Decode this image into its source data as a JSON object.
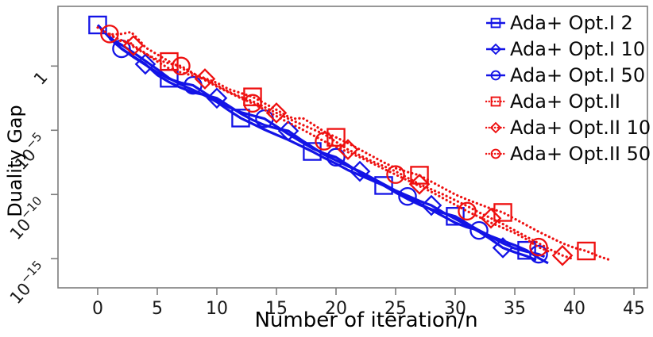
{
  "chart_data": {
    "type": "line",
    "title": "",
    "xlabel": "Number of iteration/n",
    "ylabel": "Duality Gap",
    "yscale": "log",
    "grid": false,
    "legend_position": "upper right",
    "xlim": [
      -3.33,
      46.13
    ],
    "ylog_lim": [
      -17.27,
      4.65
    ],
    "xticks": [
      0,
      5,
      10,
      15,
      20,
      25,
      30,
      35,
      40,
      45
    ],
    "yticks": [
      {
        "base": "1",
        "exp": "",
        "log": 0
      },
      {
        "base": "10",
        "exp": "−5",
        "log": -5
      },
      {
        "base": "10",
        "exp": "−10",
        "log": -10
      },
      {
        "base": "10",
        "exp": "−15",
        "log": -15
      }
    ],
    "colors": {
      "opt1_blue": "#1313e6",
      "opt2_red": "#ee1010",
      "axis": "#7d7d7d",
      "text": "#1a1a1a"
    },
    "series": [
      {
        "name": "Ada+ Opt.I 2",
        "color": "#1313e6",
        "marker": "square",
        "linestyle": "solid",
        "points": [
          [
            0,
            3.2
          ],
          [
            1,
            2.2
          ],
          [
            2,
            1.65
          ],
          [
            3,
            1.05
          ],
          [
            4,
            0.4
          ],
          [
            5,
            -0.25
          ],
          [
            6,
            -0.95
          ],
          [
            7,
            -1.45
          ],
          [
            8,
            -1.85
          ],
          [
            9,
            -2.3
          ],
          [
            10,
            -2.8
          ],
          [
            11,
            -3.45
          ],
          [
            12,
            -4.05
          ],
          [
            13,
            -4.5
          ],
          [
            14,
            -4.95
          ],
          [
            15,
            -5.35
          ],
          [
            16,
            -5.75
          ],
          [
            17,
            -6.2
          ],
          [
            18,
            -6.65
          ],
          [
            19,
            -7.15
          ],
          [
            20,
            -7.6
          ],
          [
            21,
            -8.1
          ],
          [
            22,
            -8.5
          ],
          [
            23,
            -8.9
          ],
          [
            24,
            -9.3
          ],
          [
            25,
            -9.85
          ],
          [
            26,
            -10.35
          ],
          [
            27,
            -10.8
          ],
          [
            28,
            -11.15
          ],
          [
            29,
            -11.45
          ],
          [
            30,
            -11.7
          ],
          [
            31,
            -12.25
          ],
          [
            32,
            -12.8
          ],
          [
            33,
            -13.25
          ],
          [
            34,
            -13.6
          ],
          [
            35,
            -13.95
          ],
          [
            36,
            -14.35
          ],
          [
            37,
            -14.95
          ],
          [
            37.8,
            -15.35
          ]
        ],
        "marker_points": [
          [
            0,
            3.2
          ],
          [
            6,
            -0.95
          ],
          [
            12,
            -4.05
          ],
          [
            18,
            -6.65
          ],
          [
            24,
            -9.3
          ],
          [
            30,
            -11.7
          ],
          [
            36,
            -14.35
          ]
        ]
      },
      {
        "name": "Ada+ Opt.I 10",
        "color": "#1313e6",
        "marker": "diamond",
        "linestyle": "solid",
        "points": [
          [
            1,
            2.15
          ],
          [
            2,
            1.35
          ],
          [
            3,
            0.75
          ],
          [
            4,
            0.15
          ],
          [
            5,
            -0.7
          ],
          [
            6,
            -1.25
          ],
          [
            7,
            -1.7
          ],
          [
            8,
            -2.05
          ],
          [
            9,
            -2.25
          ],
          [
            10,
            -2.5
          ],
          [
            11,
            -3.1
          ],
          [
            12,
            -3.7
          ],
          [
            13,
            -4.2
          ],
          [
            14,
            -4.6
          ],
          [
            15,
            -4.85
          ],
          [
            16,
            -5.05
          ],
          [
            17,
            -5.7
          ],
          [
            18,
            -6.3
          ],
          [
            19,
            -6.9
          ],
          [
            20,
            -7.35
          ],
          [
            21,
            -7.8
          ],
          [
            22,
            -8.2
          ],
          [
            23,
            -8.7
          ],
          [
            24,
            -9.2
          ],
          [
            25,
            -9.7
          ],
          [
            26,
            -10.1
          ],
          [
            27,
            -10.5
          ],
          [
            28,
            -10.85
          ],
          [
            29,
            -11.4
          ],
          [
            30,
            -11.9
          ],
          [
            31,
            -12.4
          ],
          [
            32,
            -12.9
          ],
          [
            33,
            -13.5
          ],
          [
            34,
            -14.15
          ],
          [
            35,
            -14.5
          ],
          [
            36,
            -14.8
          ],
          [
            36.8,
            -15.1
          ]
        ],
        "marker_points": [
          [
            4,
            0.15
          ],
          [
            10,
            -2.5
          ],
          [
            16,
            -5.05
          ],
          [
            22,
            -8.2
          ],
          [
            28,
            -10.85
          ],
          [
            34,
            -14.15
          ]
        ]
      },
      {
        "name": "Ada+ Opt.I 50",
        "color": "#1313e6",
        "marker": "circle",
        "linestyle": "solid",
        "points": [
          [
            1,
            2.3
          ],
          [
            2,
            1.35
          ],
          [
            3,
            0.7
          ],
          [
            4,
            0.1
          ],
          [
            5,
            -0.5
          ],
          [
            6,
            -1.0
          ],
          [
            7,
            -1.3
          ],
          [
            8,
            -1.5
          ],
          [
            9,
            -2.1
          ],
          [
            10,
            -2.7
          ],
          [
            11,
            -3.2
          ],
          [
            12,
            -3.6
          ],
          [
            13,
            -3.85
          ],
          [
            14,
            -4.1
          ],
          [
            15,
            -4.7
          ],
          [
            16,
            -5.3
          ],
          [
            17,
            -5.85
          ],
          [
            18,
            -6.4
          ],
          [
            19,
            -6.8
          ],
          [
            20,
            -7.1
          ],
          [
            21,
            -7.7
          ],
          [
            22,
            -8.3
          ],
          [
            23,
            -8.8
          ],
          [
            24,
            -9.3
          ],
          [
            25,
            -9.75
          ],
          [
            26,
            -10.15
          ],
          [
            27,
            -10.7
          ],
          [
            28,
            -11.2
          ],
          [
            29,
            -11.7
          ],
          [
            30,
            -12.2
          ],
          [
            31,
            -12.55
          ],
          [
            32,
            -12.8
          ],
          [
            33,
            -13.3
          ],
          [
            34,
            -13.8
          ],
          [
            35,
            -14.2
          ],
          [
            36,
            -14.45
          ],
          [
            37,
            -14.65
          ],
          [
            37.5,
            -14.85
          ]
        ],
        "marker_points": [
          [
            2,
            1.35
          ],
          [
            8,
            -1.5
          ],
          [
            14,
            -4.1
          ],
          [
            20,
            -7.1
          ],
          [
            26,
            -10.15
          ],
          [
            32,
            -12.8
          ],
          [
            37,
            -14.65
          ]
        ]
      },
      {
        "name": "Ada+ Opt.II",
        "color": "#ee1010",
        "marker": "square",
        "linestyle": "dotted",
        "points": [
          [
            0,
            3.0
          ],
          [
            1,
            2.45
          ],
          [
            2,
            2.5
          ],
          [
            2.8,
            2.65
          ],
          [
            3.5,
            2.0
          ],
          [
            4,
            1.45
          ],
          [
            5,
            0.9
          ],
          [
            6,
            0.35
          ],
          [
            7,
            -0.15
          ],
          [
            8,
            -0.6
          ],
          [
            9,
            -0.95
          ],
          [
            10,
            -1.3
          ],
          [
            11,
            -1.8
          ],
          [
            12,
            -2.1
          ],
          [
            13,
            -2.4
          ],
          [
            14,
            -2.9
          ],
          [
            15,
            -3.4
          ],
          [
            16,
            -3.95
          ],
          [
            16.6,
            -4.1
          ],
          [
            17.2,
            -4.05
          ],
          [
            18,
            -4.5
          ],
          [
            19,
            -5.1
          ],
          [
            20,
            -5.55
          ],
          [
            21,
            -6.0
          ],
          [
            22,
            -6.5
          ],
          [
            23,
            -7.0
          ],
          [
            24,
            -7.5
          ],
          [
            25,
            -7.95
          ],
          [
            26,
            -8.25
          ],
          [
            27,
            -8.5
          ],
          [
            28,
            -9.0
          ],
          [
            29,
            -9.5
          ],
          [
            30,
            -10.0
          ],
          [
            31,
            -10.4
          ],
          [
            32,
            -10.75
          ],
          [
            33,
            -11.1
          ],
          [
            34,
            -11.4
          ],
          [
            35,
            -11.9
          ],
          [
            36,
            -12.4
          ],
          [
            37,
            -12.9
          ],
          [
            38,
            -13.35
          ],
          [
            39,
            -13.8
          ],
          [
            40,
            -14.15
          ],
          [
            41,
            -14.4
          ],
          [
            42,
            -14.8
          ],
          [
            43,
            -15.1
          ]
        ],
        "marker_points": [
          [
            6,
            0.35
          ],
          [
            13,
            -2.4
          ],
          [
            20,
            -5.55
          ],
          [
            27,
            -8.5
          ],
          [
            34,
            -11.4
          ],
          [
            41,
            -14.4
          ]
        ]
      },
      {
        "name": "Ada+ Opt.II 10",
        "color": "#ee1010",
        "marker": "diamond",
        "linestyle": "dotted",
        "points": [
          [
            1,
            2.4
          ],
          [
            2,
            2.0
          ],
          [
            3,
            1.6
          ],
          [
            4,
            1.0
          ],
          [
            5,
            0.35
          ],
          [
            6,
            -0.2
          ],
          [
            7,
            -0.5
          ],
          [
            8,
            -0.75
          ],
          [
            9,
            -1.0
          ],
          [
            10,
            -1.5
          ],
          [
            11,
            -2.0
          ],
          [
            12,
            -2.4
          ],
          [
            13,
            -2.75
          ],
          [
            14,
            -3.2
          ],
          [
            15,
            -3.65
          ],
          [
            16,
            -4.1
          ],
          [
            17,
            -4.5
          ],
          [
            18,
            -4.9
          ],
          [
            19,
            -5.3
          ],
          [
            20,
            -5.9
          ],
          [
            21,
            -6.5
          ],
          [
            22,
            -6.95
          ],
          [
            23,
            -7.4
          ],
          [
            24,
            -7.8
          ],
          [
            25,
            -8.2
          ],
          [
            26,
            -8.7
          ],
          [
            27,
            -9.2
          ],
          [
            28,
            -9.6
          ],
          [
            29,
            -10.0
          ],
          [
            30,
            -10.45
          ],
          [
            31,
            -10.9
          ],
          [
            32,
            -11.4
          ],
          [
            33,
            -11.85
          ],
          [
            34,
            -12.3
          ],
          [
            35,
            -12.8
          ],
          [
            36,
            -13.3
          ],
          [
            37,
            -13.8
          ],
          [
            38,
            -14.3
          ],
          [
            39,
            -14.75
          ],
          [
            39.8,
            -15.0
          ]
        ],
        "marker_points": [
          [
            3,
            1.6
          ],
          [
            9,
            -1.0
          ],
          [
            15,
            -3.65
          ],
          [
            21,
            -6.5
          ],
          [
            27,
            -9.2
          ],
          [
            33,
            -11.85
          ],
          [
            39,
            -14.75
          ]
        ]
      },
      {
        "name": "Ada+ Opt.II 50",
        "color": "#ee1010",
        "marker": "circle",
        "linestyle": "dotted",
        "points": [
          [
            1,
            2.5
          ],
          [
            2,
            1.9
          ],
          [
            2.6,
            2.0
          ],
          [
            3,
            1.5
          ],
          [
            4,
            0.95
          ],
          [
            5,
            0.5
          ],
          [
            6,
            0.2
          ],
          [
            7,
            0.0
          ],
          [
            8,
            -0.55
          ],
          [
            9,
            -1.1
          ],
          [
            10,
            -1.6
          ],
          [
            11,
            -2.05
          ],
          [
            12,
            -2.5
          ],
          [
            13,
            -2.9
          ],
          [
            14,
            -3.4
          ],
          [
            15,
            -3.9
          ],
          [
            16,
            -4.4
          ],
          [
            17,
            -4.85
          ],
          [
            18,
            -5.35
          ],
          [
            19,
            -5.85
          ],
          [
            20,
            -6.3
          ],
          [
            21,
            -6.7
          ],
          [
            22,
            -7.1
          ],
          [
            23,
            -7.55
          ],
          [
            24,
            -8.0
          ],
          [
            25,
            -8.45
          ],
          [
            26,
            -8.9
          ],
          [
            27,
            -9.35
          ],
          [
            28,
            -9.8
          ],
          [
            29,
            -10.3
          ],
          [
            30,
            -10.8
          ],
          [
            31,
            -11.3
          ],
          [
            32,
            -11.75
          ],
          [
            33,
            -12.2
          ],
          [
            34,
            -12.6
          ],
          [
            35,
            -13.0
          ],
          [
            36,
            -13.5
          ],
          [
            37,
            -14.1
          ],
          [
            38,
            -14.5
          ]
        ],
        "marker_points": [
          [
            1,
            2.5
          ],
          [
            7,
            0.0
          ],
          [
            13,
            -2.9
          ],
          [
            19,
            -5.85
          ],
          [
            25,
            -8.45
          ],
          [
            31,
            -11.3
          ],
          [
            37,
            -14.1
          ]
        ]
      }
    ]
  }
}
